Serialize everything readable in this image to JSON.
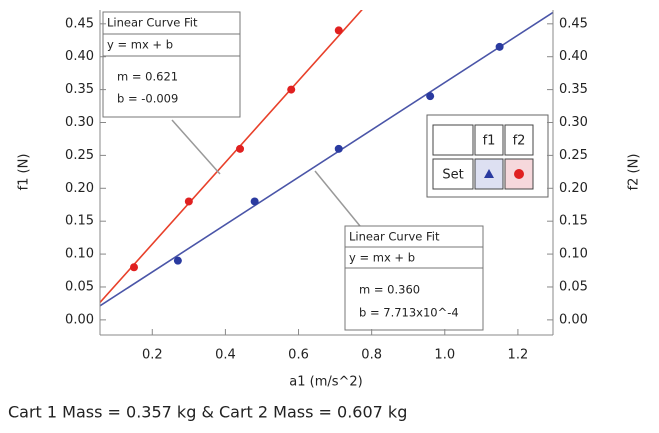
{
  "chart_data": {
    "type": "scatter",
    "x_label": "a1 (m/s^2)",
    "y_label": "f1 (N)",
    "y2_label": "f2 (N)",
    "xlim": [
      0.057,
      1.296
    ],
    "ylim": [
      -0.023,
      0.471
    ],
    "y2lim": [
      -0.023,
      0.471
    ],
    "xticks": [
      0.2,
      0.4,
      0.6,
      0.8,
      {
        "value": 1.0,
        "label": "1.0"
      },
      1.2
    ],
    "yticks": [
      {
        "value": 0,
        "label": "0.00"
      },
      {
        "value": 0.05,
        "label": "0.05"
      },
      {
        "value": 0.1,
        "label": "0.10"
      },
      0.15,
      {
        "value": 0.2,
        "label": "0.20"
      },
      0.25,
      {
        "value": 0.3,
        "label": "0.30"
      },
      0.35,
      {
        "value": 0.4,
        "label": "0.40"
      },
      0.45
    ],
    "y2ticks": [
      {
        "value": 0,
        "label": "0.00"
      },
      {
        "value": 0.05,
        "label": "0.05"
      },
      {
        "value": 0.1,
        "label": "0.10"
      },
      0.15,
      {
        "value": 0.2,
        "label": "0.20"
      },
      0.25,
      {
        "value": 0.3,
        "label": "0.30"
      },
      0.35,
      {
        "value": 0.4,
        "label": "0.40"
      },
      0.45
    ],
    "series": [
      {
        "name": "f1",
        "color": "#2a3aa0",
        "line_color": "#4a55a8",
        "marker": "triangle",
        "x": [
          0.27,
          0.48,
          0.71,
          0.96,
          1.15
        ],
        "values": [
          0.09,
          0.18,
          0.26,
          0.34,
          0.415
        ],
        "fit": {
          "title": "Linear Curve Fit",
          "equation": "y = mx + b",
          "m_text": "m = 0.360",
          "b_text": "b = 7.713x10^-4",
          "m": 0.36,
          "b": 0.0007713
        }
      },
      {
        "name": "f2",
        "color": "#e02020",
        "line_color": "#e8402a",
        "marker": "circle",
        "axis": "y2",
        "x": [
          0.15,
          0.3,
          0.44,
          0.58,
          0.71
        ],
        "values": [
          0.08,
          0.18,
          0.26,
          0.35,
          0.44
        ],
        "fit": {
          "title": "Linear Curve Fit",
          "equation": "y = mx + b",
          "m_text": "m = 0.621",
          "b_text": "b = -0.009",
          "m": 0.621,
          "b": -0.009
        }
      }
    ],
    "legend_row_label": "Set",
    "footer": "Cart 1 Mass = 0.357 kg  & Cart 2 Mass = 0.607 kg"
  }
}
